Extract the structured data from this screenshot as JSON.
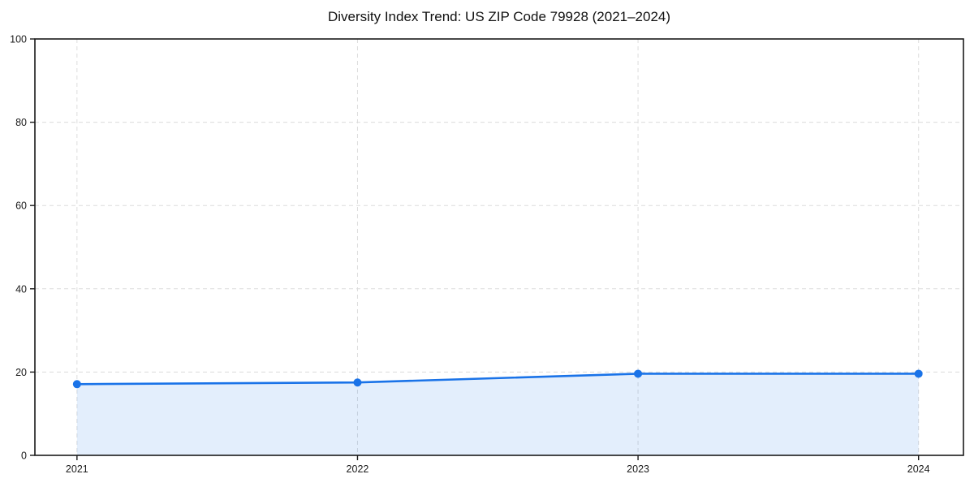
{
  "chart_data": {
    "type": "line",
    "title": "Diversity Index Trend: US ZIP Code 79928 (2021–2024)",
    "x": [
      2021,
      2022,
      2023,
      2024
    ],
    "series": [
      {
        "name": "Diversity Index",
        "values": [
          17.1,
          17.5,
          19.6,
          19.6
        ]
      }
    ],
    "xlabel": "",
    "ylabel": "",
    "xlim": [
      2020.85,
      2024.16
    ],
    "ylim": [
      0,
      100
    ],
    "xticks": [
      2021,
      2022,
      2023,
      2024
    ],
    "yticks": [
      0,
      20,
      40,
      60,
      80,
      100
    ],
    "grid": true,
    "grid_style": "dashed",
    "legend": false,
    "area_fill": true,
    "colors": {
      "line": "#1a73e8",
      "marker": "#1a73e8",
      "fill": "#1a73e8",
      "fill_opacity": 0.12,
      "grid": "#dcdcdc",
      "spine": "#1a1a1a",
      "tick_label": "#1a1a1a",
      "title": "#111111",
      "background": "#ffffff"
    }
  }
}
